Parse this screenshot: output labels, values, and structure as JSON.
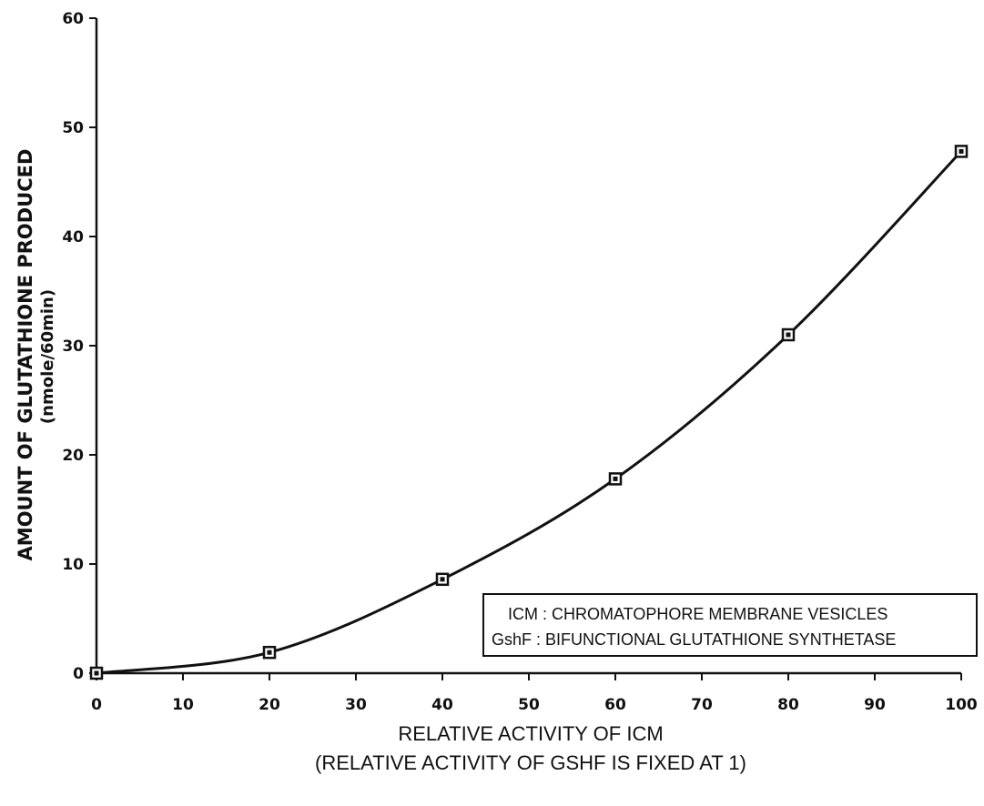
{
  "chart_data": {
    "type": "line",
    "title": "",
    "xlabel": "RELATIVE ACTIVITY OF ICM",
    "xlabel_sub": "(RELATIVE ACTIVITY OF GSHF IS FIXED AT 1)",
    "ylabel": "AMOUNT OF GLUTATHIONE PRODUCED",
    "ylabel_unit": "(nmole/60min)",
    "xlim": [
      0,
      100
    ],
    "ylim": [
      0,
      60
    ],
    "xticks": [
      0,
      10,
      20,
      30,
      40,
      50,
      60,
      70,
      80,
      90,
      100
    ],
    "yticks": [
      0,
      10,
      20,
      30,
      40,
      50,
      60
    ],
    "grid": false,
    "marker": "square",
    "series": [
      {
        "x": [
          0,
          20,
          40,
          60,
          80,
          100
        ],
        "values": [
          0,
          1.9,
          8.6,
          17.8,
          31.0,
          47.8
        ]
      }
    ],
    "legend_placement": "bottom-right",
    "annotation": [
      "ICM : CHROMATOPHORE MEMBRANE VESICLES",
      "GshF : BIFUNCTIONAL GLUTATHIONE SYNTHETASE"
    ]
  }
}
